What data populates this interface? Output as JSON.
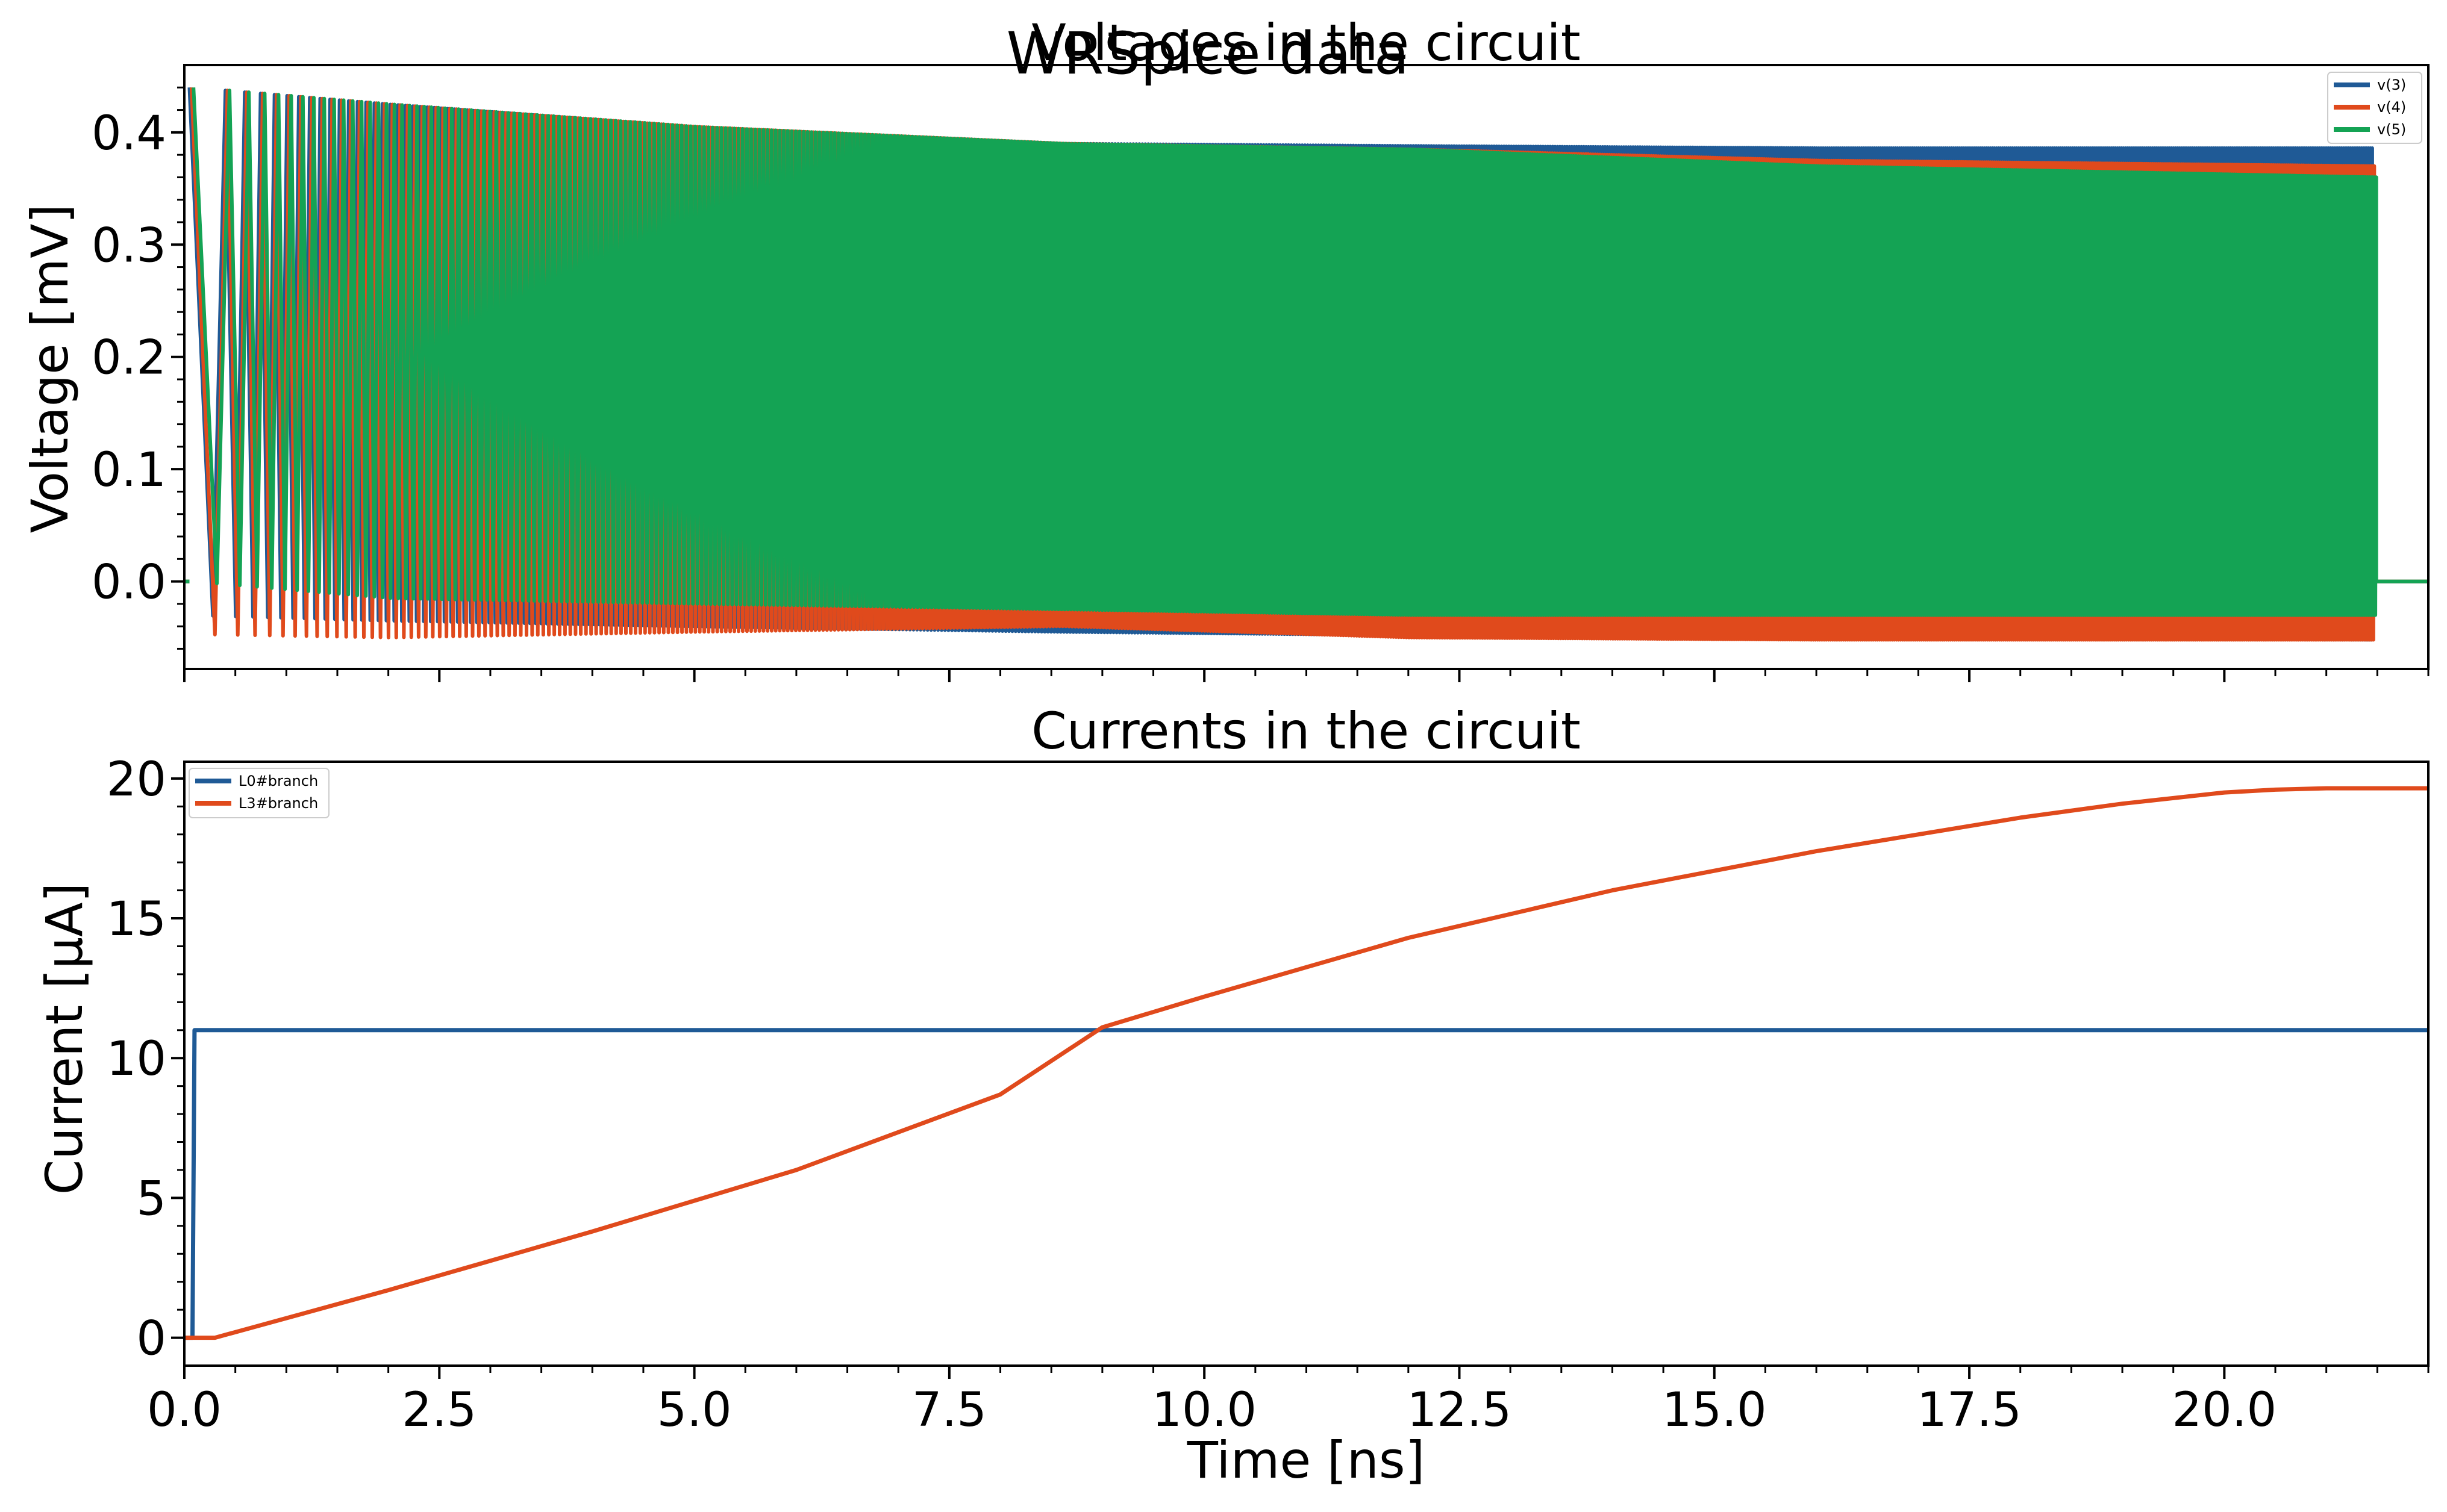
{
  "figure": {
    "suptitle": "WRSpice data"
  },
  "chart_data": [
    {
      "type": "line",
      "title": "Voltages in the circuit",
      "xlabel": "",
      "ylabel": "Voltage [mV]",
      "xlim": [
        0.0,
        22.0
      ],
      "ylim": [
        -0.078,
        0.46
      ],
      "xticks": [
        0.0,
        2.5,
        5.0,
        7.5,
        10.0,
        12.5,
        15.0,
        17.5,
        20.0
      ],
      "xtick_labels_visible": false,
      "yticks": [
        0.0,
        0.1,
        0.2,
        0.3,
        0.4
      ],
      "ytick_labels": [
        "0.0",
        "0.1",
        "0.2",
        "0.3",
        "0.4"
      ],
      "grid": false,
      "legend_position": "top-right",
      "series": [
        {
          "name": "v(3)",
          "color": "#1f5a96",
          "description_points": {
            "t_ns": [
              0.05,
              2.0,
              5.0,
              8.6,
              12.0,
              16.0,
              21.5
            ],
            "peak_mV": [
              0.44,
              0.425,
              0.405,
              0.39,
              0.388,
              0.386,
              0.386
            ],
            "trough_mV": [
              -0.03,
              -0.035,
              -0.04,
              -0.045,
              -0.048,
              -0.05,
              -0.052
            ]
          },
          "oscillation_end_ns": 21.45
        },
        {
          "name": "v(4)",
          "color": "#e04a1c",
          "description_points": {
            "t_ns": [
              0.05,
              2.0,
              5.0,
              8.6,
              12.0,
              16.0,
              21.5
            ],
            "peak_mV": [
              0.44,
              0.425,
              0.405,
              0.39,
              0.385,
              0.375,
              0.37
            ],
            "trough_mV": [
              -0.047,
              -0.05,
              -0.045,
              -0.04,
              -0.05,
              -0.052,
              -0.052
            ]
          },
          "oscillation_end_ns": 21.45
        },
        {
          "name": "v(5)",
          "color": "#14a354",
          "description_points": {
            "t_ns": [
              0.05,
              2.0,
              5.0,
              8.6,
              12.0,
              16.0,
              21.5
            ],
            "peak_mV": [
              0.44,
              0.425,
              0.405,
              0.39,
              0.385,
              0.37,
              0.36
            ],
            "trough_mV": [
              0.0,
              -0.015,
              -0.02,
              -0.025,
              -0.03,
              -0.03,
              -0.03
            ]
          },
          "oscillation_end_ns": 21.45
        }
      ]
    },
    {
      "type": "line",
      "title": "Currents in the circuit",
      "xlabel": "Time [ns]",
      "ylabel": "Current [μA]",
      "xlim": [
        0.0,
        22.0
      ],
      "ylim": [
        -1.0,
        20.6
      ],
      "xticks": [
        0.0,
        2.5,
        5.0,
        7.5,
        10.0,
        12.5,
        15.0,
        17.5,
        20.0
      ],
      "xtick_labels": [
        "0.0",
        "2.5",
        "5.0",
        "7.5",
        "10.0",
        "12.5",
        "15.0",
        "17.5",
        "20.0"
      ],
      "yticks": [
        0,
        5,
        10,
        15,
        20
      ],
      "ytick_labels": [
        "0",
        "5",
        "10",
        "15",
        "20"
      ],
      "grid": false,
      "legend_position": "top-left",
      "series": [
        {
          "name": "L0#branch",
          "color": "#1f5a96",
          "x": [
            0.0,
            0.08,
            0.1,
            22.0
          ],
          "y": [
            0.0,
            0.0,
            11.0,
            11.0
          ]
        },
        {
          "name": "L3#branch",
          "color": "#e04a1c",
          "x": [
            0.0,
            0.3,
            2.0,
            4.0,
            6.0,
            8.0,
            9.0,
            10.0,
            12.0,
            14.0,
            16.0,
            18.0,
            19.0,
            20.0,
            20.5,
            21.0,
            22.0
          ],
          "y": [
            0.0,
            0.0,
            1.7,
            3.8,
            6.0,
            8.7,
            11.1,
            12.2,
            14.3,
            16.0,
            17.4,
            18.6,
            19.1,
            19.5,
            19.6,
            19.65,
            19.65
          ]
        }
      ]
    }
  ]
}
